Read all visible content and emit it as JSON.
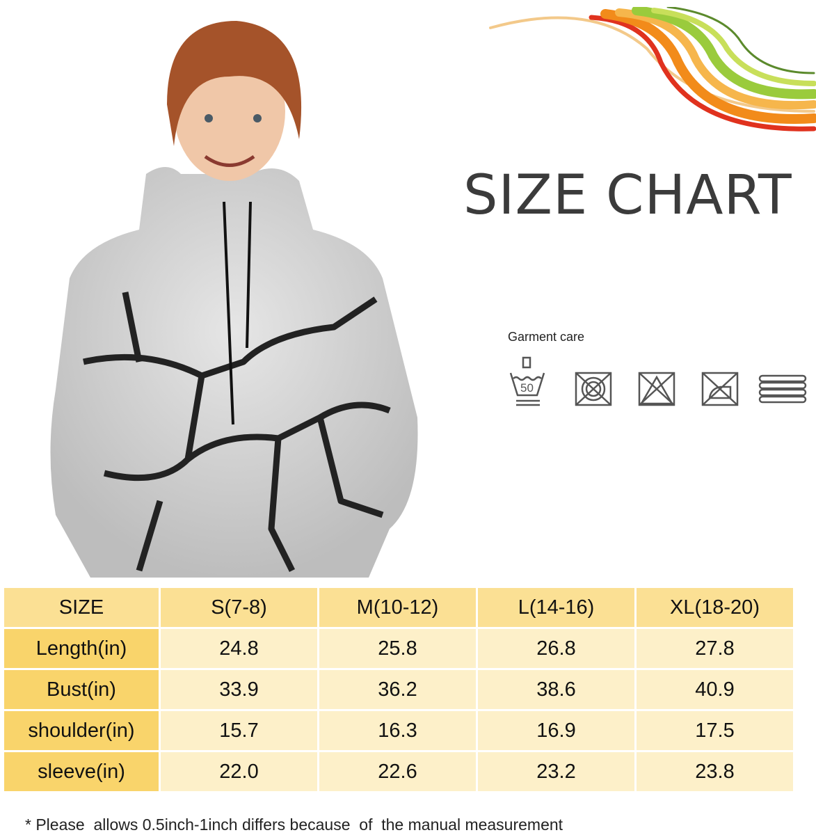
{
  "title": "SIZE CHART",
  "garment_care": {
    "label": "Garment care",
    "icons": [
      "hand-wash-50-icon",
      "do-not-tumble-dry-icon",
      "do-not-bleach-icon",
      "do-not-iron-icon",
      "dry-flat-icon"
    ],
    "wash_temp": "50"
  },
  "table": {
    "header": [
      "SIZE",
      "S(7-8)",
      "M(10-12)",
      "L(14-16)",
      "XL(18-20)"
    ],
    "rows": [
      {
        "label": "Length(in)",
        "values": [
          "24.8",
          "25.8",
          "26.8",
          "27.8"
        ]
      },
      {
        "label": "Bust(in)",
        "values": [
          "33.9",
          "36.2",
          "38.6",
          "40.9"
        ]
      },
      {
        "label": "shoulder(in)",
        "values": [
          "15.7",
          "16.3",
          "16.9",
          "17.5"
        ]
      },
      {
        "label": "sleeve(in)",
        "values": [
          "22.0",
          "22.6",
          "23.2",
          "23.8"
        ]
      }
    ]
  },
  "note": "* Please  allows 0.5inch-1inch differs because  of  the manual measurement",
  "colors": {
    "header": "#fbe094",
    "label_col": "#f9d46b",
    "cell": "#fdf0c9"
  }
}
